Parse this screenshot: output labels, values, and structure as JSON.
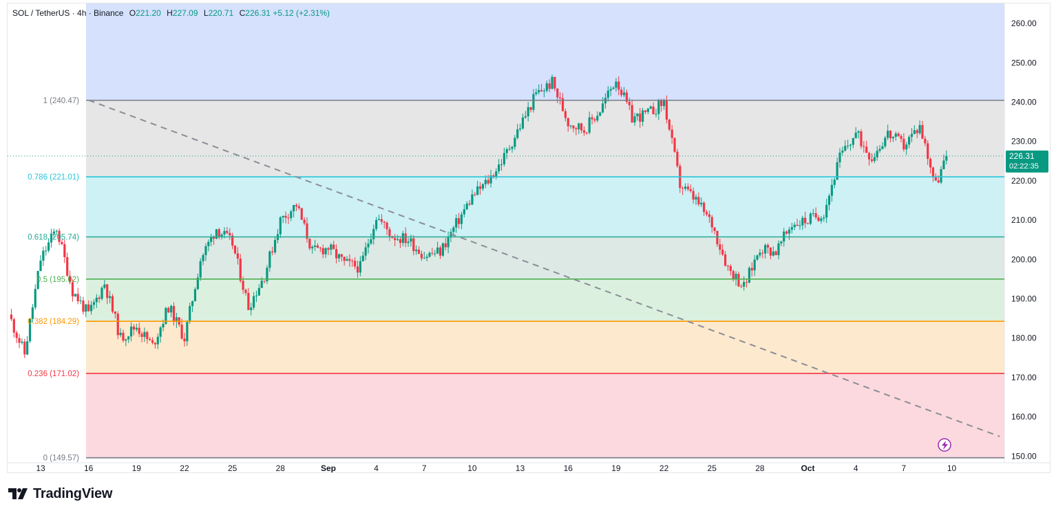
{
  "header": {
    "symbol": "SOL / TetherUS · 4h · Binance",
    "open_label": "O",
    "open": "221.20",
    "high_label": "H",
    "high": "227.09",
    "low_label": "L",
    "low": "220.71",
    "close_label": "C",
    "close": "226.31",
    "change": "+5.12 (+2.31%)"
  },
  "price_tag": {
    "price": "226.31",
    "countdown": "02:22:35"
  },
  "branding": {
    "name": "TradingView"
  },
  "colors": {
    "bull": "#089981",
    "bear": "#f23645",
    "zone_top": "#d5e1fd",
    "zone_1": "#e6e6e6",
    "zone_0786": "#cdf1f5",
    "zone_0618": "#dde9e5",
    "zone_05": "#dcf0df",
    "zone_0382": "#fde9ce",
    "zone_0236": "#fbd9de",
    "line_1": "#787b86",
    "line_0786": "#26c6da",
    "line_0618": "#22ab94",
    "line_05": "#4caf50",
    "line_0382": "#ff9800",
    "line_0236": "#f23645",
    "line_0": "#787b86"
  },
  "chart_data": {
    "type": "candlestick",
    "title": "SOL / TetherUS · 4h · Binance",
    "y_range": [
      148.3,
      265.1
    ],
    "price_axis_ticks": [
      "260.00",
      "250.00",
      "240.00",
      "230.00",
      "220.00",
      "210.00",
      "200.00",
      "190.00",
      "180.00",
      "170.00",
      "160.00",
      "150.00"
    ],
    "time_axis_ticks": [
      "13",
      "16",
      "19",
      "22",
      "25",
      "28",
      "Sep",
      "4",
      "7",
      "10",
      "13",
      "16",
      "19",
      "22",
      "25",
      "28",
      "Oct",
      "4",
      "7",
      "10"
    ],
    "fib_levels": [
      {
        "ratio": 1,
        "price": 240.47,
        "label": "1 (240.47)"
      },
      {
        "ratio": 0.786,
        "price": 221.01,
        "label": "0.786 (221.01)"
      },
      {
        "ratio": 0.618,
        "price": 205.74,
        "label": "0.618 (205.74)"
      },
      {
        "ratio": 0.5,
        "price": 195.02,
        "label": "0.5 (195.02)"
      },
      {
        "ratio": 0.382,
        "price": 184.29,
        "label": "0.382 (184.29)"
      },
      {
        "ratio": 0.236,
        "price": 171.02,
        "label": "0.236 (171.02)"
      },
      {
        "ratio": 0,
        "price": 149.57,
        "label": "0 (149.57)"
      }
    ],
    "trendline": {
      "from": {
        "date": "Aug 16",
        "price": 240.5
      },
      "to": {
        "date": "Oct 12",
        "price": 155.0
      },
      "style": "dashed"
    },
    "current_price": 226.31,
    "close_path": [
      [
        "Aug 11",
        186
      ],
      [
        "Aug 12",
        176
      ],
      [
        "Aug 13",
        200
      ],
      [
        "Aug 14",
        208
      ],
      [
        "Aug 15",
        192
      ],
      [
        "Aug 16",
        186
      ],
      [
        "Aug 17",
        194
      ],
      [
        "Aug 18",
        180
      ],
      [
        "Aug 19",
        183
      ],
      [
        "Aug 20",
        178
      ],
      [
        "Aug 21",
        188
      ],
      [
        "Aug 22",
        180
      ],
      [
        "Aug 23",
        200
      ],
      [
        "Aug 24",
        208
      ],
      [
        "Aug 25",
        204
      ],
      [
        "Aug 26",
        188
      ],
      [
        "Aug 27",
        196
      ],
      [
        "Aug 28",
        210
      ],
      [
        "Aug 29",
        214
      ],
      [
        "Aug 30",
        202
      ],
      [
        "Aug 31",
        203
      ],
      [
        "Sep 1",
        199
      ],
      [
        "Sep 2",
        198
      ],
      [
        "Sep 3",
        211
      ],
      [
        "Sep 4",
        206
      ],
      [
        "Sep 5",
        205
      ],
      [
        "Sep 6",
        201
      ],
      [
        "Sep 7",
        202
      ],
      [
        "Sep 8",
        209
      ],
      [
        "Sep 9",
        216
      ],
      [
        "Sep 10",
        220
      ],
      [
        "Sep 11",
        226
      ],
      [
        "Sep 12",
        234
      ],
      [
        "Sep 13",
        242
      ],
      [
        "Sep 14",
        245
      ],
      [
        "Sep 15",
        235
      ],
      [
        "Sep 16",
        233
      ],
      [
        "Sep 17",
        238
      ],
      [
        "Sep 18",
        246
      ],
      [
        "Sep 19",
        236
      ],
      [
        "Sep 20",
        237
      ],
      [
        "Sep 21",
        240
      ],
      [
        "Sep 22",
        219
      ],
      [
        "Sep 23",
        215
      ],
      [
        "Sep 24",
        209
      ],
      [
        "Sep 25",
        198
      ],
      [
        "Sep 26",
        193
      ],
      [
        "Sep 27",
        203
      ],
      [
        "Sep 28",
        202
      ],
      [
        "Sep 29",
        209
      ],
      [
        "Sep 30",
        210
      ],
      [
        "Oct 1",
        212
      ],
      [
        "Oct 2",
        226
      ],
      [
        "Oct 3",
        232
      ],
      [
        "Oct 4",
        226
      ],
      [
        "Oct 5",
        232
      ],
      [
        "Oct 6",
        229
      ],
      [
        "Oct 7",
        234
      ],
      [
        "Oct 8",
        219
      ],
      [
        "Oct 8 16:00",
        226.31
      ]
    ]
  }
}
